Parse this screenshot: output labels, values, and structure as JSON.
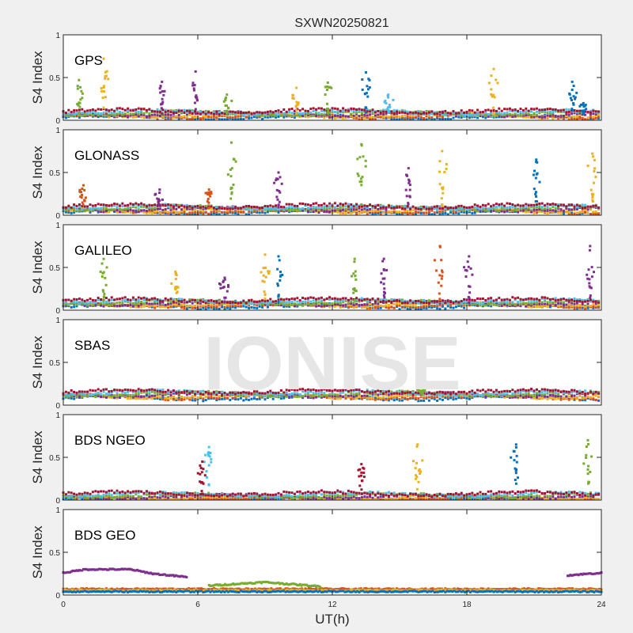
{
  "chart_data": {
    "type": "scatter",
    "title": "SXWN20250821",
    "xlabel": "UT(h)",
    "ylabel": "S4 Index",
    "xlim": [
      0,
      24
    ],
    "ylim": [
      0,
      1
    ],
    "xticks": [
      "0",
      "6",
      "12",
      "18",
      "24"
    ],
    "yticks": [
      "0",
      "0.5",
      "1"
    ],
    "watermark": "IONISE",
    "series_colors": [
      "#0072bd",
      "#d95319",
      "#edb120",
      "#7e2f8e",
      "#77ac30",
      "#4dbeee",
      "#a2142f"
    ],
    "panels": [
      {
        "name": "GPS",
        "baseline": 0.07,
        "peaks": [
          [
            0.7,
            0.47,
            4
          ],
          [
            1.8,
            0.72,
            2
          ],
          [
            4.4,
            0.45,
            3
          ],
          [
            5.9,
            0.57,
            3
          ],
          [
            7.3,
            0.3,
            4
          ],
          [
            10.4,
            0.38,
            2
          ],
          [
            11.8,
            0.44,
            4
          ],
          [
            13.5,
            0.56,
            0
          ],
          [
            14.5,
            0.3,
            5
          ],
          [
            19.2,
            0.6,
            2
          ],
          [
            22.7,
            0.45,
            0
          ],
          [
            23.2,
            0.2,
            0
          ]
        ]
      },
      {
        "name": "GLONASS",
        "baseline": 0.07,
        "peaks": [
          [
            0.9,
            0.35,
            1
          ],
          [
            4.3,
            0.3,
            3
          ],
          [
            6.5,
            0.3,
            1
          ],
          [
            7.5,
            0.85,
            4
          ],
          [
            9.6,
            0.5,
            3
          ],
          [
            13.3,
            0.83,
            4
          ],
          [
            15.4,
            0.55,
            3
          ],
          [
            16.9,
            0.75,
            2
          ],
          [
            21.1,
            0.65,
            0
          ],
          [
            23.6,
            0.72,
            2
          ]
        ]
      },
      {
        "name": "GALILEO",
        "baseline": 0.08,
        "peaks": [
          [
            1.8,
            0.6,
            4
          ],
          [
            5.0,
            0.45,
            2
          ],
          [
            7.2,
            0.38,
            3
          ],
          [
            9.0,
            0.65,
            2
          ],
          [
            9.6,
            0.63,
            0
          ],
          [
            13.0,
            0.6,
            4
          ],
          [
            14.3,
            0.6,
            3
          ],
          [
            16.8,
            0.75,
            1
          ],
          [
            18.1,
            0.63,
            3
          ],
          [
            23.5,
            0.75,
            3
          ]
        ]
      },
      {
        "name": "SBAS",
        "baseline": 0.12,
        "peaks": [
          [
            16.0,
            0.2,
            4
          ]
        ]
      },
      {
        "name": "BDS NGEO",
        "baseline": 0.04,
        "peaks": [
          [
            6.5,
            0.62,
            5
          ],
          [
            6.2,
            0.45,
            6
          ],
          [
            13.3,
            0.42,
            6
          ],
          [
            15.8,
            0.65,
            2
          ],
          [
            20.2,
            0.65,
            0
          ],
          [
            23.4,
            0.7,
            4
          ]
        ]
      },
      {
        "name": "BDS GEO",
        "baseline": 0.07,
        "tracks": [
          {
            "color": 3,
            "x": [
              0,
              1,
              3,
              4,
              5.5
            ],
            "y": [
              0.26,
              0.3,
              0.3,
              0.25,
              0.21
            ]
          },
          {
            "color": 4,
            "x": [
              6.5,
              9,
              11.5
            ],
            "y": [
              0.11,
              0.15,
              0.1
            ]
          },
          {
            "color": 3,
            "x": [
              22.5,
              24
            ],
            "y": [
              0.23,
              0.26
            ]
          }
        ]
      }
    ]
  }
}
